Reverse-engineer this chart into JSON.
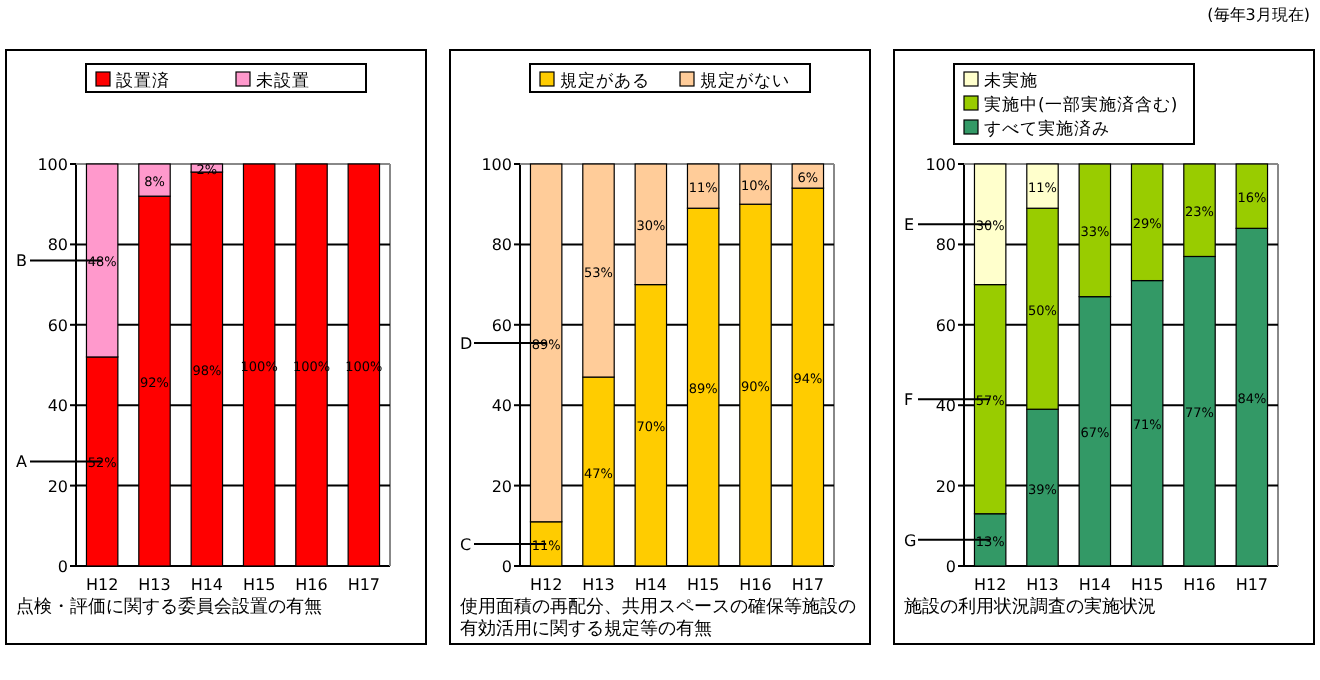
{
  "chart_data": [
    {
      "type": "bar",
      "stacked": true,
      "xlabel": "点検・評価に関する委員会設置の有無",
      "categories": [
        "H12",
        "H13",
        "H14",
        "H15",
        "H16",
        "H17"
      ],
      "ylim": [
        0,
        100
      ],
      "yticks": [
        0,
        20,
        40,
        60,
        80,
        100
      ],
      "grid": "y",
      "legend": "top",
      "series": [
        {
          "name": "設置済",
          "color": "#ff0000",
          "values": [
            52,
            92,
            98,
            100,
            100,
            100
          ],
          "value_labels": [
            "52%",
            "92%",
            "98%",
            "100%",
            "100%",
            "100%"
          ]
        },
        {
          "name": "未設置",
          "color": "#ff99cc",
          "values": [
            48,
            8,
            2,
            0,
            0,
            0
          ],
          "value_labels": [
            "48%",
            "8%",
            "2%",
            null,
            null,
            null
          ]
        }
      ],
      "annotations": [
        "A",
        "B"
      ]
    },
    {
      "type": "bar",
      "stacked": true,
      "xlabel": "使用面積の再配分、共用スペースの確保等施設の有効活用に関する規定等の有無",
      "categories": [
        "H12",
        "H13",
        "H14",
        "H15",
        "H16",
        "H17"
      ],
      "ylim": [
        0,
        100
      ],
      "yticks": [
        0,
        20,
        40,
        60,
        80,
        100
      ],
      "grid": "y",
      "legend": "top",
      "series": [
        {
          "name": "規定がある",
          "color": "#ffcc00",
          "values": [
            11,
            47,
            70,
            89,
            90,
            94
          ],
          "value_labels": [
            "11%",
            "47%",
            "70%",
            "89%",
            "90%",
            "94%"
          ]
        },
        {
          "name": "規定がない",
          "color": "#ffcc99",
          "values": [
            89,
            53,
            30,
            11,
            10,
            6
          ],
          "value_labels": [
            "89%",
            "53%",
            "30%",
            "11%",
            "10%",
            "6%"
          ]
        }
      ],
      "annotations": [
        "C",
        "D"
      ]
    },
    {
      "type": "bar",
      "stacked": true,
      "xlabel": "施設の利用状況調査の実施状況",
      "categories": [
        "H12",
        "H13",
        "H14",
        "H15",
        "H16",
        "H17"
      ],
      "ylim": [
        0,
        100
      ],
      "yticks": [
        0,
        20,
        40,
        60,
        80,
        100
      ],
      "grid": "y",
      "legend": "top",
      "series": [
        {
          "name": "すべて実施済み",
          "color": "#339966",
          "values": [
            13,
            39,
            67,
            71,
            77,
            84
          ],
          "value_labels": [
            "13%",
            "39%",
            "67%",
            "71%",
            "77%",
            "84%"
          ]
        },
        {
          "name": "実施中(一部実施済含む)",
          "color": "#99cc00",
          "values": [
            57,
            50,
            33,
            29,
            23,
            16
          ],
          "value_labels": [
            "57%",
            "50%",
            "33%",
            "29%",
            "23%",
            "16%"
          ]
        },
        {
          "name": "未実施",
          "color": "#ffffcc",
          "values": [
            30,
            11,
            0,
            0,
            0,
            0
          ],
          "value_labels": [
            "30%",
            "11%",
            null,
            null,
            null,
            null
          ]
        }
      ],
      "annotations": [
        "G",
        "F",
        "E",
        "(毎年3月現在)"
      ]
    }
  ]
}
